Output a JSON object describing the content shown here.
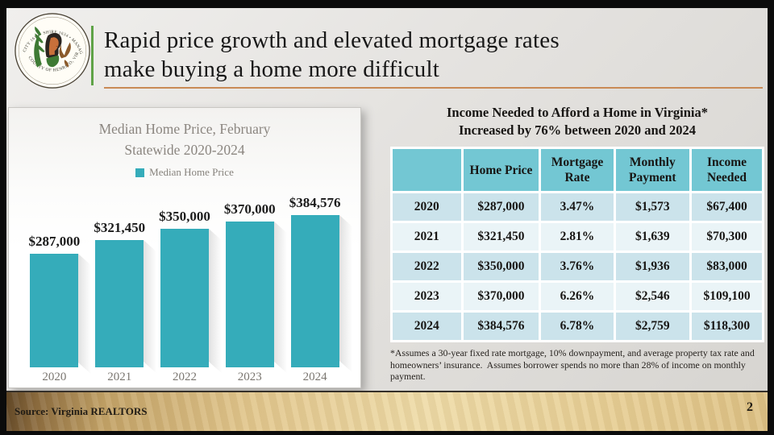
{
  "slide": {
    "title_line1": "Rapid price growth and elevated mortgage rates",
    "title_line2": "make buying a home more difficult",
    "source": "Source: Virginia REALTORS",
    "page_number": "2"
  },
  "logo": {
    "name": "henrico-county-seal",
    "top_text": "CITY 1611 • SHIRE 1634 • MANAGER 1934",
    "bottom_text": "COUNTY OF HENRICO, VIRGINIA"
  },
  "colors": {
    "bar_teal": "#35ACBA",
    "table_header_teal": "#73C7D3",
    "row_dark": "#CBE3EB",
    "row_light": "#EAF4F7",
    "accent_green": "#5FA347",
    "accent_orange": "#C98A55"
  },
  "chart_data": [
    {
      "type": "bar",
      "title_line1": "Median Home Price, February",
      "title_line2": "Statewide 2020-2024",
      "legend": [
        "Median Home Price"
      ],
      "legend_position": "top",
      "categories": [
        "2020",
        "2021",
        "2022",
        "2023",
        "2024"
      ],
      "values": [
        287000,
        321450,
        350000,
        370000,
        384576
      ],
      "labels": [
        "$287,000",
        "$321,450",
        "$350,000",
        "$370,000",
        "$384,576"
      ],
      "xlabel": "",
      "ylabel": "",
      "ylim": [
        0,
        465000
      ],
      "grid": false,
      "bar_color": "#35ACBA"
    },
    {
      "type": "table",
      "title_line1": "Income Needed to Afford a Home in Virginia*",
      "title_line2": "Increased by 76% between 2020 and 2024",
      "columns": [
        "",
        "Home Price",
        "Mortgage Rate",
        "Monthly Payment",
        "Income Needed"
      ],
      "rows": [
        [
          "2020",
          "$287,000",
          "3.47%",
          "$1,573",
          "$67,400"
        ],
        [
          "2021",
          "$321,450",
          "2.81%",
          "$1,639",
          "$70,300"
        ],
        [
          "2022",
          "$350,000",
          "3.76%",
          "$1,936",
          "$83,000"
        ],
        [
          "2023",
          "$370,000",
          "6.26%",
          "$2,546",
          "$109,100"
        ],
        [
          "2024",
          "$384,576",
          "6.78%",
          "$2,759",
          "$118,300"
        ]
      ],
      "footnote": "*Assumes a 30-year fixed rate mortgage, 10% downpayment, and average property tax rate and homeowners’ insurance.  Assumes borrower spends no more than 28% of income on monthly payment."
    }
  ]
}
